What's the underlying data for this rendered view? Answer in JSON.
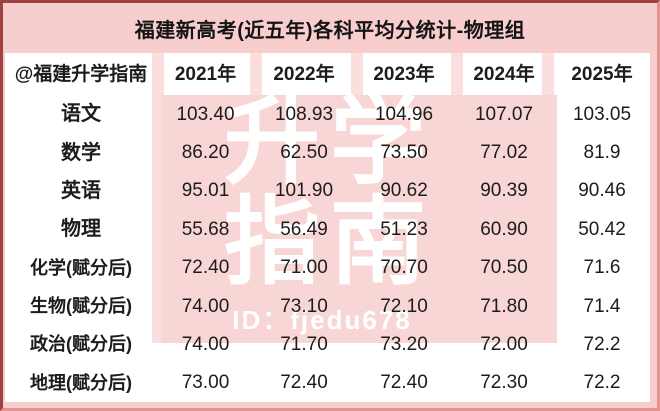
{
  "title": "福建新高考(近五年)各科平均分统计-物理组",
  "watermark": {
    "big_line1": "升学",
    "big_line2": "指南",
    "id_text": "ID：fjedu678"
  },
  "table": {
    "header": [
      "@福建升学指南",
      "2021年",
      "2022年",
      "2023年",
      "2024年",
      "2025年"
    ],
    "rows": [
      {
        "label": "语文",
        "values": [
          "103.40",
          "108.93",
          "104.96",
          "107.07",
          "103.05"
        ]
      },
      {
        "label": "数学",
        "values": [
          "86.20",
          "62.50",
          "73.50",
          "77.02",
          "81.9"
        ]
      },
      {
        "label": "英语",
        "values": [
          "95.01",
          "101.90",
          "90.62",
          "90.39",
          "90.46"
        ]
      },
      {
        "label": "物理",
        "values": [
          "55.68",
          "56.49",
          "51.23",
          "60.90",
          "50.42"
        ]
      },
      {
        "label": "化学(赋分后)",
        "values": [
          "72.40",
          "71.00",
          "70.70",
          "70.50",
          "71.6"
        ]
      },
      {
        "label": "生物(赋分后)",
        "values": [
          "74.00",
          "73.10",
          "72.10",
          "71.80",
          "71.4"
        ]
      },
      {
        "label": "政治(赋分后)",
        "values": [
          "74.00",
          "71.70",
          "73.20",
          "72.00",
          "72.2"
        ]
      },
      {
        "label": "地理(赋分后)",
        "values": [
          "73.00",
          "72.40",
          "72.40",
          "72.30",
          "72.2"
        ]
      }
    ]
  },
  "chart_data": {
    "type": "table",
    "title": "福建新高考(近五年)各科平均分统计-物理组",
    "categories": [
      "2021年",
      "2022年",
      "2023年",
      "2024年",
      "2025年"
    ],
    "series": [
      {
        "name": "语文",
        "values": [
          103.4,
          108.93,
          104.96,
          107.07,
          103.05
        ]
      },
      {
        "name": "数学",
        "values": [
          86.2,
          62.5,
          73.5,
          77.02,
          81.9
        ]
      },
      {
        "name": "英语",
        "values": [
          95.01,
          101.9,
          90.62,
          90.39,
          90.46
        ]
      },
      {
        "name": "物理",
        "values": [
          55.68,
          56.49,
          51.23,
          60.9,
          50.42
        ]
      },
      {
        "name": "化学(赋分后)",
        "values": [
          72.4,
          71.0,
          70.7,
          70.5,
          71.6
        ]
      },
      {
        "name": "生物(赋分后)",
        "values": [
          74.0,
          73.1,
          72.1,
          71.8,
          71.4
        ]
      },
      {
        "name": "政治(赋分后)",
        "values": [
          74.0,
          71.7,
          73.2,
          72.0,
          72.2
        ]
      },
      {
        "name": "地理(赋分后)",
        "values": [
          73.0,
          72.4,
          72.4,
          72.3,
          72.2
        ]
      }
    ]
  },
  "colors": {
    "border_red": "#9e4244",
    "page_pink": "#f7cdce",
    "stamp_pink": "#f8d6d6",
    "stripe_pink": "#fbdfdf",
    "text": "#1c1c1c",
    "watermark_white": "#ffffff"
  }
}
